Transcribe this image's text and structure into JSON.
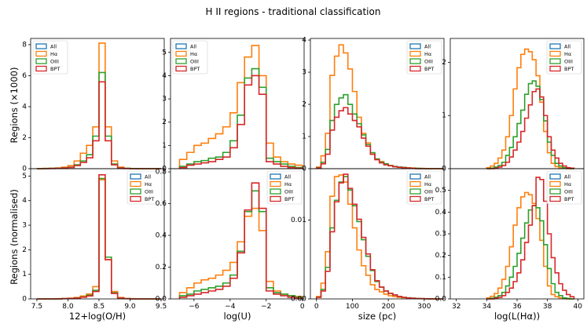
{
  "figure": {
    "title": "H II regions - traditional classification",
    "ylabel_top": "Regions (×1000)",
    "ylabel_bottom": "Regions (normalised)",
    "colors": {
      "All": "#1f77b4",
      "Hα": "#ff7f0e",
      "OIII": "#2ca02c",
      "BPT": "#d62728"
    }
  },
  "chart_data": [
    {
      "type": "histogram",
      "row": 0,
      "col": 0,
      "xlim": [
        7.4,
        9.55
      ],
      "ylim": [
        0,
        8.4
      ],
      "yticks": [
        0,
        2,
        4,
        6,
        8
      ],
      "legend_pos": "top-left",
      "legend": [
        "All",
        "Hα",
        "OIII",
        "BPT"
      ],
      "bin_edges": [
        7.5,
        7.6,
        7.7,
        7.8,
        7.9,
        8.0,
        8.1,
        8.2,
        8.3,
        8.4,
        8.5,
        8.6,
        8.7,
        8.8,
        8.9,
        9.0,
        9.1,
        9.2,
        9.3,
        9.4,
        9.5
      ],
      "series": [
        {
          "name": "Hα",
          "values": [
            0,
            0.02,
            0.03,
            0.05,
            0.1,
            0.2,
            0.5,
            1.0,
            1.5,
            2.7,
            8.1,
            2.7,
            0.5,
            0.1,
            0.03,
            0.01,
            0.01,
            0,
            0,
            0
          ]
        },
        {
          "name": "OIII",
          "values": [
            0,
            0.01,
            0.02,
            0.03,
            0.05,
            0.1,
            0.25,
            0.5,
            0.9,
            2.1,
            6.2,
            2.1,
            0.3,
            0.05,
            0.02,
            0.01,
            0,
            0,
            0,
            0
          ]
        },
        {
          "name": "BPT",
          "values": [
            0,
            0,
            0.01,
            0.02,
            0.04,
            0.08,
            0.2,
            0.4,
            0.7,
            1.8,
            5.6,
            1.8,
            0.25,
            0.04,
            0.01,
            0,
            0,
            0,
            0,
            0
          ]
        }
      ]
    },
    {
      "type": "histogram",
      "row": 0,
      "col": 1,
      "xlim": [
        -7.3,
        0.1
      ],
      "ylim": [
        0,
        5.6
      ],
      "yticks": [
        0,
        1,
        2,
        3,
        4,
        5
      ],
      "legend_pos": "top-left",
      "legend": [
        "All",
        "Hα",
        "OIII",
        "BPT"
      ],
      "bin_edges": [
        -6.8,
        -6.4,
        -6.0,
        -5.6,
        -5.2,
        -4.8,
        -4.4,
        -4.0,
        -3.6,
        -3.2,
        -2.8,
        -2.4,
        -2.0,
        -1.6,
        -1.2,
        -0.8,
        -0.4,
        0.0
      ],
      "series": [
        {
          "name": "Hα",
          "values": [
            0.4,
            0.7,
            1.0,
            1.1,
            1.3,
            1.5,
            1.8,
            2.4,
            3.7,
            4.8,
            5.3,
            4.0,
            1.1,
            0.5,
            0.3,
            0.2,
            0.15
          ]
        },
        {
          "name": "OIII",
          "values": [
            0.1,
            0.2,
            0.3,
            0.35,
            0.45,
            0.5,
            0.7,
            1.2,
            2.3,
            3.9,
            4.3,
            3.5,
            0.45,
            0.3,
            0.2,
            0.1,
            0.05
          ]
        },
        {
          "name": "BPT",
          "values": [
            0.05,
            0.15,
            0.2,
            0.25,
            0.3,
            0.4,
            0.5,
            0.9,
            1.9,
            3.6,
            4.0,
            3.2,
            0.3,
            0.2,
            0.1,
            0.05,
            0.02
          ]
        }
      ]
    },
    {
      "type": "histogram",
      "row": 0,
      "col": 2,
      "xlim": [
        -17,
        355
      ],
      "ylim": [
        0,
        4.05
      ],
      "yticks": [
        0,
        1,
        2,
        3,
        4
      ],
      "legend_pos": "top-right",
      "legend": [
        "All",
        "Hα",
        "OIII",
        "BPT"
      ],
      "bin_edges": [
        0,
        12.5,
        25,
        37.5,
        50,
        62.5,
        75,
        87.5,
        100,
        112.5,
        125,
        137.5,
        150,
        162.5,
        175,
        187.5,
        200,
        212.5,
        225,
        237.5,
        250,
        262.5,
        275,
        287.5,
        300,
        312.5,
        325,
        337.5,
        350
      ],
      "series": [
        {
          "name": "Hα",
          "values": [
            0.05,
            0.4,
            1.1,
            2.9,
            3.5,
            3.85,
            3.6,
            3.1,
            2.4,
            1.6,
            1.1,
            0.8,
            0.45,
            0.3,
            0.22,
            0.15,
            0.1,
            0.07,
            0.05,
            0.04,
            0.03,
            0.02,
            0.01,
            0.01,
            0,
            0,
            0,
            0
          ]
        },
        {
          "name": "OIII",
          "values": [
            0.03,
            0.2,
            0.6,
            1.5,
            2.0,
            2.2,
            2.3,
            2.0,
            1.7,
            1.4,
            1.05,
            0.75,
            0.5,
            0.3,
            0.2,
            0.15,
            0.1,
            0.07,
            0.05,
            0.04,
            0.02,
            0.01,
            0.01,
            0,
            0,
            0,
            0,
            0
          ]
        },
        {
          "name": "BPT",
          "values": [
            0.02,
            0.15,
            0.45,
            1.2,
            1.6,
            1.8,
            1.9,
            1.7,
            1.5,
            1.3,
            0.95,
            0.7,
            0.45,
            0.28,
            0.18,
            0.12,
            0.09,
            0.06,
            0.04,
            0.03,
            0.02,
            0.01,
            0,
            0,
            0,
            0,
            0,
            0
          ]
        }
      ]
    },
    {
      "type": "histogram",
      "row": 0,
      "col": 3,
      "xlim": [
        31.6,
        40.4
      ],
      "ylim": [
        0,
        2.45
      ],
      "yticks": [
        0,
        1,
        2
      ],
      "legend_pos": "top-right",
      "legend": [
        "All",
        "Hα",
        "OIII",
        "BPT"
      ],
      "bin_edges": [
        34.0,
        34.25,
        34.5,
        34.75,
        35.0,
        35.25,
        35.5,
        35.75,
        36.0,
        36.25,
        36.5,
        36.75,
        37.0,
        37.25,
        37.5,
        37.75,
        38.0,
        38.25,
        38.5,
        38.75,
        39.0,
        39.25,
        39.5,
        39.75
      ],
      "series": [
        {
          "name": "Hα",
          "values": [
            0.02,
            0.05,
            0.1,
            0.2,
            0.35,
            0.6,
            1.0,
            1.5,
            1.9,
            2.15,
            2.25,
            2.2,
            2.05,
            1.75,
            1.25,
            0.7,
            0.3,
            0.1,
            0.04,
            0.02,
            0.01,
            0,
            0
          ]
        },
        {
          "name": "OIII",
          "values": [
            0,
            0.01,
            0.03,
            0.06,
            0.12,
            0.25,
            0.4,
            0.6,
            0.85,
            1.1,
            1.4,
            1.6,
            1.65,
            1.55,
            1.3,
            0.9,
            0.5,
            0.25,
            0.1,
            0.05,
            0.02,
            0.01,
            0
          ]
        },
        {
          "name": "BPT",
          "values": [
            0,
            0,
            0.01,
            0.03,
            0.06,
            0.12,
            0.22,
            0.35,
            0.5,
            0.7,
            0.95,
            1.2,
            1.45,
            1.5,
            1.35,
            1.0,
            0.6,
            0.35,
            0.2,
            0.1,
            0.05,
            0.02,
            0.01
          ]
        }
      ]
    },
    {
      "type": "histogram",
      "row": 1,
      "col": 0,
      "xlim": [
        7.4,
        9.55
      ],
      "ylim": [
        0,
        5.3
      ],
      "yticks": [
        0,
        1,
        2,
        3,
        4,
        5
      ],
      "legend_pos": "top-right",
      "legend": [
        "All",
        "Hα",
        "OIII",
        "BPT"
      ],
      "xticks": [
        7.5,
        8.0,
        8.5,
        9.0,
        9.5
      ],
      "xlabel": "12+log(O/H)",
      "bin_edges": [
        7.5,
        7.6,
        7.7,
        7.8,
        7.9,
        8.0,
        8.1,
        8.2,
        8.3,
        8.4,
        8.5,
        8.6,
        8.7,
        8.8,
        8.9,
        9.0,
        9.1,
        9.2,
        9.3,
        9.4,
        9.5
      ],
      "series": [
        {
          "name": "Hα",
          "values": [
            0,
            0,
            0,
            0.01,
            0.02,
            0.03,
            0.06,
            0.12,
            0.2,
            0.5,
            4.85,
            1.6,
            0.3,
            0.06,
            0.02,
            0.01,
            0,
            0,
            0,
            0
          ]
        },
        {
          "name": "OIII",
          "values": [
            0,
            0,
            0,
            0,
            0.01,
            0.02,
            0.04,
            0.08,
            0.15,
            0.35,
            4.9,
            1.7,
            0.25,
            0.04,
            0.01,
            0,
            0,
            0,
            0,
            0
          ]
        },
        {
          "name": "BPT",
          "values": [
            0,
            0,
            0,
            0,
            0.01,
            0.02,
            0.03,
            0.07,
            0.12,
            0.3,
            5.05,
            1.6,
            0.22,
            0.03,
            0.01,
            0,
            0,
            0,
            0,
            0
          ]
        }
      ]
    },
    {
      "type": "histogram",
      "row": 1,
      "col": 1,
      "xlim": [
        -7.3,
        0.1
      ],
      "ylim": [
        0,
        0.82
      ],
      "yticks": [
        0,
        0.2,
        0.4,
        0.6,
        0.8
      ],
      "ytick_labels": [
        "0.0",
        "0.2",
        "0.4",
        "0.6",
        "0.8"
      ],
      "legend_pos": "top-right",
      "legend": [
        "All",
        "Hα",
        "OIII",
        "BPT"
      ],
      "xticks": [
        -6,
        -4,
        -2,
        0
      ],
      "xlabel": "log(U)",
      "bin_edges": [
        -6.8,
        -6.4,
        -6.0,
        -5.6,
        -5.2,
        -4.8,
        -4.4,
        -4.0,
        -3.6,
        -3.2,
        -2.8,
        -2.4,
        -2.0,
        -1.6,
        -1.2,
        -0.8,
        -0.4,
        0.0
      ],
      "series": [
        {
          "name": "Hα",
          "values": [
            0.04,
            0.07,
            0.1,
            0.12,
            0.13,
            0.15,
            0.18,
            0.23,
            0.36,
            0.52,
            0.57,
            0.43,
            0.11,
            0.05,
            0.03,
            0.02,
            0.015
          ]
        },
        {
          "name": "OIII",
          "values": [
            0.02,
            0.03,
            0.05,
            0.06,
            0.07,
            0.08,
            0.1,
            0.15,
            0.3,
            0.55,
            0.68,
            0.55,
            0.07,
            0.04,
            0.03,
            0.02,
            0.01
          ]
        },
        {
          "name": "BPT",
          "values": [
            0.01,
            0.02,
            0.03,
            0.04,
            0.05,
            0.06,
            0.08,
            0.13,
            0.29,
            0.56,
            0.73,
            0.57,
            0.05,
            0.03,
            0.02,
            0.01,
            0.005
          ]
        }
      ]
    },
    {
      "type": "histogram",
      "row": 1,
      "col": 2,
      "xlim": [
        -17,
        355
      ],
      "ylim": [
        0,
        0.0165
      ],
      "yticks": [
        0,
        0.01
      ],
      "ytick_labels": [
        "0.00",
        "0.01"
      ],
      "legend_pos": "top-right",
      "legend": [
        "All",
        "Hα",
        "OIII",
        "BPT"
      ],
      "xticks": [
        0,
        100,
        200,
        300
      ],
      "xlabel": "size (pc)",
      "bin_edges": [
        0,
        12.5,
        25,
        37.5,
        50,
        62.5,
        75,
        87.5,
        100,
        112.5,
        125,
        137.5,
        150,
        162.5,
        175,
        187.5,
        200,
        212.5,
        225,
        237.5,
        250,
        262.5,
        275,
        287.5,
        300,
        312.5,
        325,
        337.5,
        350
      ],
      "series": [
        {
          "name": "Hα",
          "values": [
            0.0003,
            0.002,
            0.006,
            0.013,
            0.0155,
            0.0157,
            0.0148,
            0.012,
            0.009,
            0.0062,
            0.0042,
            0.003,
            0.0018,
            0.0012,
            0.0009,
            0.0006,
            0.0004,
            0.0003,
            0.0002,
            0.00015,
            0.0001,
            8e-05,
            5e-05,
            4e-05,
            2e-05,
            1e-05,
            0,
            0
          ]
        },
        {
          "name": "OIII",
          "values": [
            0.0002,
            0.0012,
            0.004,
            0.009,
            0.0125,
            0.0148,
            0.0155,
            0.0138,
            0.0118,
            0.0098,
            0.0075,
            0.0054,
            0.0036,
            0.0022,
            0.0015,
            0.001,
            0.0007,
            0.0005,
            0.0003,
            0.0002,
            0.00015,
            0.0001,
            5e-05,
            3e-05,
            2e-05,
            1e-05,
            0,
            0
          ]
        },
        {
          "name": "BPT",
          "values": [
            0.0002,
            0.001,
            0.0035,
            0.0085,
            0.0123,
            0.0147,
            0.0158,
            0.014,
            0.012,
            0.0101,
            0.0078,
            0.0057,
            0.0037,
            0.0023,
            0.0015,
            0.001,
            0.0007,
            0.0005,
            0.0003,
            0.0002,
            0.00012,
            8e-05,
            5e-05,
            3e-05,
            2e-05,
            1e-05,
            0,
            0
          ]
        }
      ]
    },
    {
      "type": "histogram",
      "row": 1,
      "col": 3,
      "xlim": [
        31.6,
        40.4
      ],
      "ylim": [
        0,
        0.6
      ],
      "yticks": [
        0,
        0.1,
        0.2,
        0.3,
        0.4,
        0.5
      ],
      "ytick_labels": [
        "0.0",
        "0.1",
        "0.2",
        "0.3",
        "0.4",
        "0.5"
      ],
      "legend_pos": "top-right",
      "legend": [
        "All",
        "Hα",
        "OIII",
        "BPT"
      ],
      "xticks": [
        32,
        34,
        36,
        38,
        40
      ],
      "xlabel": "log(L(Hα))",
      "bin_edges": [
        34.0,
        34.25,
        34.5,
        34.75,
        35.0,
        35.25,
        35.5,
        35.75,
        36.0,
        36.25,
        36.5,
        36.75,
        37.0,
        37.25,
        37.5,
        37.75,
        38.0,
        38.25,
        38.5,
        38.75,
        39.0,
        39.25,
        39.5,
        39.75
      ],
      "series": [
        {
          "name": "Hα",
          "values": [
            0.005,
            0.012,
            0.025,
            0.05,
            0.09,
            0.15,
            0.24,
            0.34,
            0.42,
            0.47,
            0.49,
            0.48,
            0.44,
            0.37,
            0.27,
            0.15,
            0.06,
            0.02,
            0.01,
            0.005,
            0.002,
            0,
            0
          ]
        },
        {
          "name": "OIII",
          "values": [
            0,
            0.003,
            0.008,
            0.015,
            0.03,
            0.06,
            0.1,
            0.15,
            0.21,
            0.28,
            0.35,
            0.41,
            0.43,
            0.42,
            0.36,
            0.25,
            0.14,
            0.07,
            0.03,
            0.015,
            0.005,
            0.002,
            0
          ]
        },
        {
          "name": "BPT",
          "values": [
            0,
            0,
            0.003,
            0.007,
            0.015,
            0.03,
            0.05,
            0.08,
            0.12,
            0.18,
            0.26,
            0.34,
            0.43,
            0.56,
            0.55,
            0.45,
            0.3,
            0.19,
            0.12,
            0.07,
            0.04,
            0.02,
            0.01
          ]
        }
      ]
    }
  ]
}
